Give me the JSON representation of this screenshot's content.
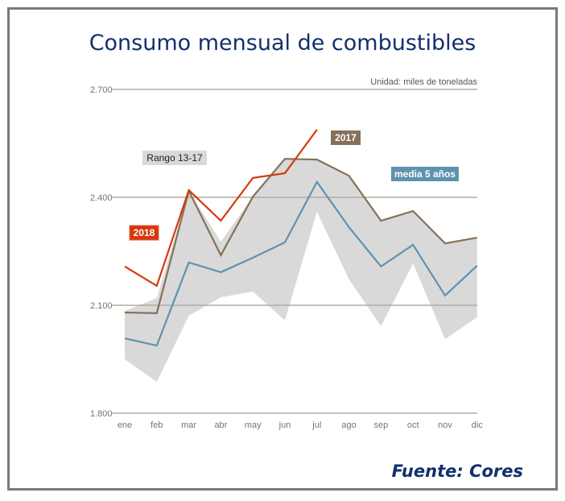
{
  "chart_data": {
    "type": "line",
    "title": "Consumo mensual de combustibles",
    "unit_note": "Unidad: miles de toneladas",
    "source": "Fuente: Cores",
    "categories": [
      "ene",
      "feb",
      "mar",
      "abr",
      "may",
      "jun",
      "jul",
      "ago",
      "sep",
      "oct",
      "nov",
      "dic"
    ],
    "ylim": [
      1800,
      2700
    ],
    "yticks": [
      1800,
      2100,
      2400,
      2700
    ],
    "ytick_labels": [
      "1.800",
      "2.100",
      "2.400",
      "2.700"
    ],
    "grid": true,
    "range": {
      "name": "Rango 13-17",
      "color": "#d9d9d9",
      "lower": [
        1950,
        1887,
        2071,
        2122,
        2138,
        2058,
        2360,
        2172,
        2042,
        2216,
        2006,
        2067
      ],
      "upper": [
        2084,
        2120,
        2418,
        2277,
        2402,
        2507,
        2505,
        2460,
        2335,
        2362,
        2272,
        2288
      ]
    },
    "series": [
      {
        "name": "2018",
        "color": "#d4380d",
        "values": [
          2208,
          2154,
          2420,
          2335,
          2454,
          2467,
          2588,
          null,
          null,
          null,
          null,
          null
        ]
      },
      {
        "name": "2017",
        "color": "#857159",
        "values": [
          2080,
          2078,
          2418,
          2239,
          2402,
          2507,
          2505,
          2460,
          2335,
          2362,
          2272,
          2288
        ]
      },
      {
        "name": "media 5 años",
        "color": "#5f92ae",
        "values": [
          2008,
          1988,
          2219,
          2192,
          2232,
          2275,
          2443,
          2317,
          2208,
          2268,
          2127,
          2210
        ]
      }
    ]
  }
}
